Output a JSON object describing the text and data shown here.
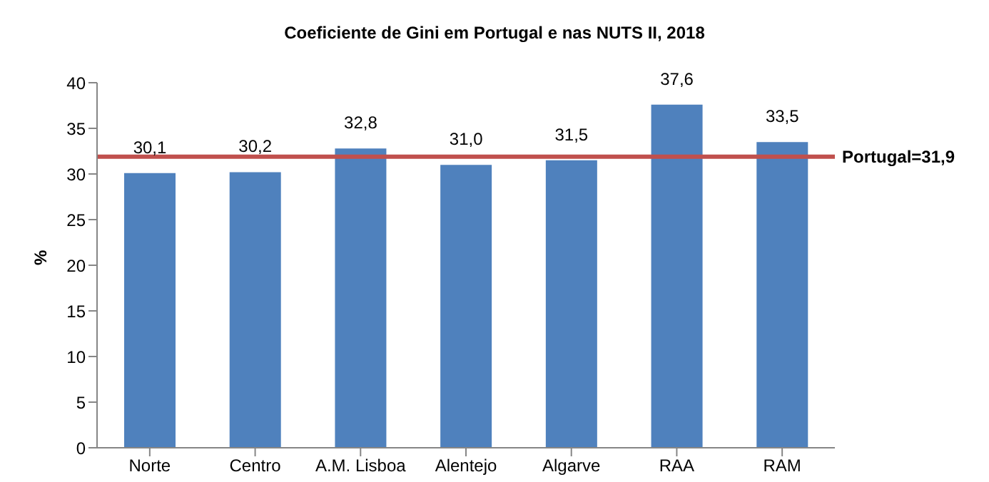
{
  "chart_data": {
    "type": "bar",
    "title": "Coeficiente de Gini em Portugal e nas NUTS II, 2018",
    "ylabel": "%",
    "categories": [
      "Norte",
      "Centro",
      "A.M. Lisboa",
      "Alentejo",
      "Algarve",
      "RAA",
      "RAM"
    ],
    "values": [
      30.1,
      30.2,
      32.8,
      31.0,
      31.5,
      37.6,
      33.5
    ],
    "value_labels": [
      "30,1",
      "30,2",
      "32,8",
      "31,0",
      "31,5",
      "37,6",
      "33,5"
    ],
    "color": "#4f81bd",
    "ylim": [
      0,
      40
    ],
    "yticks": [
      0,
      5,
      10,
      15,
      20,
      25,
      30,
      35,
      40
    ],
    "grid": false,
    "legend": false,
    "ref_lines": [
      {
        "axis": "y",
        "value": 31.9,
        "label": "Portugal=31,9",
        "color": "#c0504d",
        "line_style": "solid"
      }
    ]
  }
}
